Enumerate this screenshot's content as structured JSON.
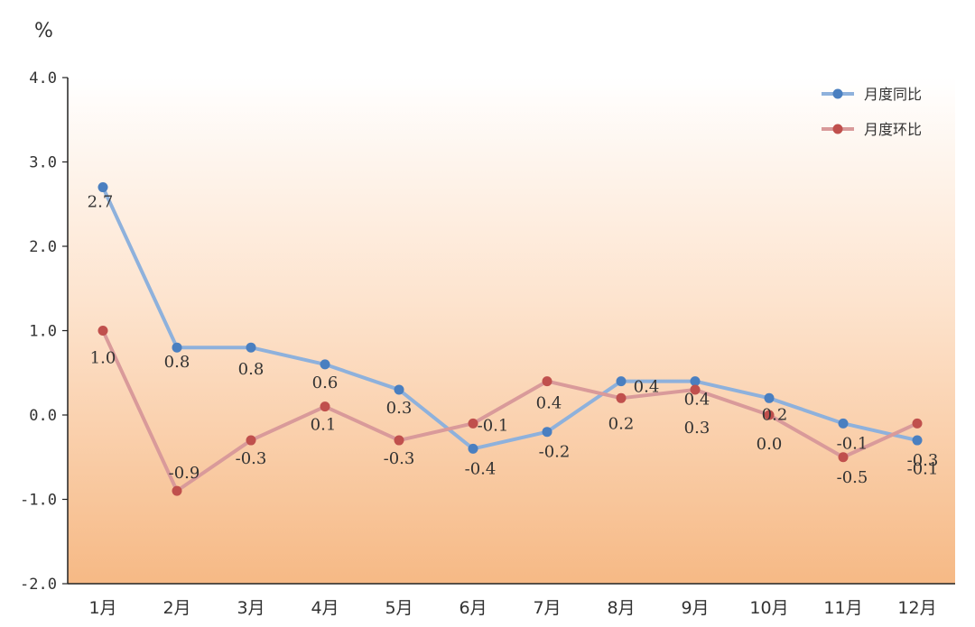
{
  "chart_data": {
    "type": "line",
    "unit_label": "%",
    "categories": [
      "1月",
      "2月",
      "3月",
      "4月",
      "5月",
      "6月",
      "7月",
      "8月",
      "9月",
      "10月",
      "11月",
      "12月"
    ],
    "ylim": [
      -2.0,
      4.0
    ],
    "yticks": [
      "-2.0",
      "-1.0",
      "0.0",
      "1.0",
      "2.0",
      "3.0",
      "4.0"
    ],
    "grid": false,
    "legend_position": "top-right",
    "series": [
      {
        "name": "月度同比",
        "color": "#8eb1dc",
        "marker_color": "#4a7fc0",
        "values": [
          2.7,
          0.8,
          0.8,
          0.6,
          0.3,
          -0.4,
          -0.2,
          0.4,
          0.4,
          0.2,
          -0.1,
          -0.3
        ],
        "labels": [
          "2.7",
          "0.8",
          "0.8",
          "0.6",
          "0.3",
          "-0.4",
          "-0.2",
          "0.4",
          "0.4",
          "0.2",
          "-0.1",
          "-0.3"
        ]
      },
      {
        "name": "月度环比",
        "color": "#d99a9a",
        "marker_color": "#c0504d",
        "values": [
          1.0,
          -0.9,
          -0.3,
          0.1,
          -0.3,
          -0.1,
          0.4,
          0.2,
          0.3,
          0.0,
          -0.5,
          -0.1
        ],
        "labels": [
          "1.0",
          "-0.9",
          "-0.3",
          "0.1",
          "-0.3",
          "-0.1",
          "0.4",
          "0.2",
          "0.3",
          "0.0",
          "-0.5",
          "-0.1"
        ]
      }
    ]
  }
}
